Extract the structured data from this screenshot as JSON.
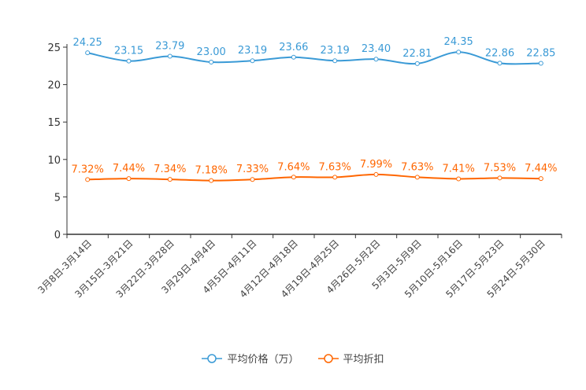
{
  "chart_data": {
    "type": "line",
    "categories": [
      "3月8日-3月14日",
      "3月15日-3月21日",
      "3月22日-3月28日",
      "3月29日-4月4日",
      "4月5日-4月11日",
      "4月12日-4月18日",
      "4月19日-4月25日",
      "4月26日-5月2日",
      "5月3日-5月9日",
      "5月10日-5月16日",
      "5月17日-5月23日",
      "5月24日-5月30日"
    ],
    "series": [
      {
        "name": "平均价格（万）",
        "color": "#3a9ad6",
        "values": [
          24.25,
          23.15,
          23.79,
          23.0,
          23.19,
          23.66,
          23.19,
          23.4,
          22.81,
          24.35,
          22.86,
          22.85
        ],
        "labels": [
          "24.25",
          "23.15",
          "23.79",
          "23.00",
          "23.19",
          "23.66",
          "23.19",
          "23.40",
          "22.81",
          "24.35",
          "22.86",
          "22.85"
        ]
      },
      {
        "name": "平均折扣",
        "color": "#ff6600",
        "values": [
          7.32,
          7.44,
          7.34,
          7.18,
          7.33,
          7.64,
          7.63,
          7.99,
          7.63,
          7.41,
          7.53,
          7.44
        ],
        "labels": [
          "7.32%",
          "7.44%",
          "7.34%",
          "7.18%",
          "7.33%",
          "7.64%",
          "7.63%",
          "7.99%",
          "7.63%",
          "7.41%",
          "7.53%",
          "7.44%"
        ]
      }
    ],
    "ylim": [
      0,
      25
    ],
    "yticks": [
      "0",
      "5",
      "10",
      "15",
      "20",
      "25"
    ],
    "legend_position": "bottom",
    "grid": false
  }
}
